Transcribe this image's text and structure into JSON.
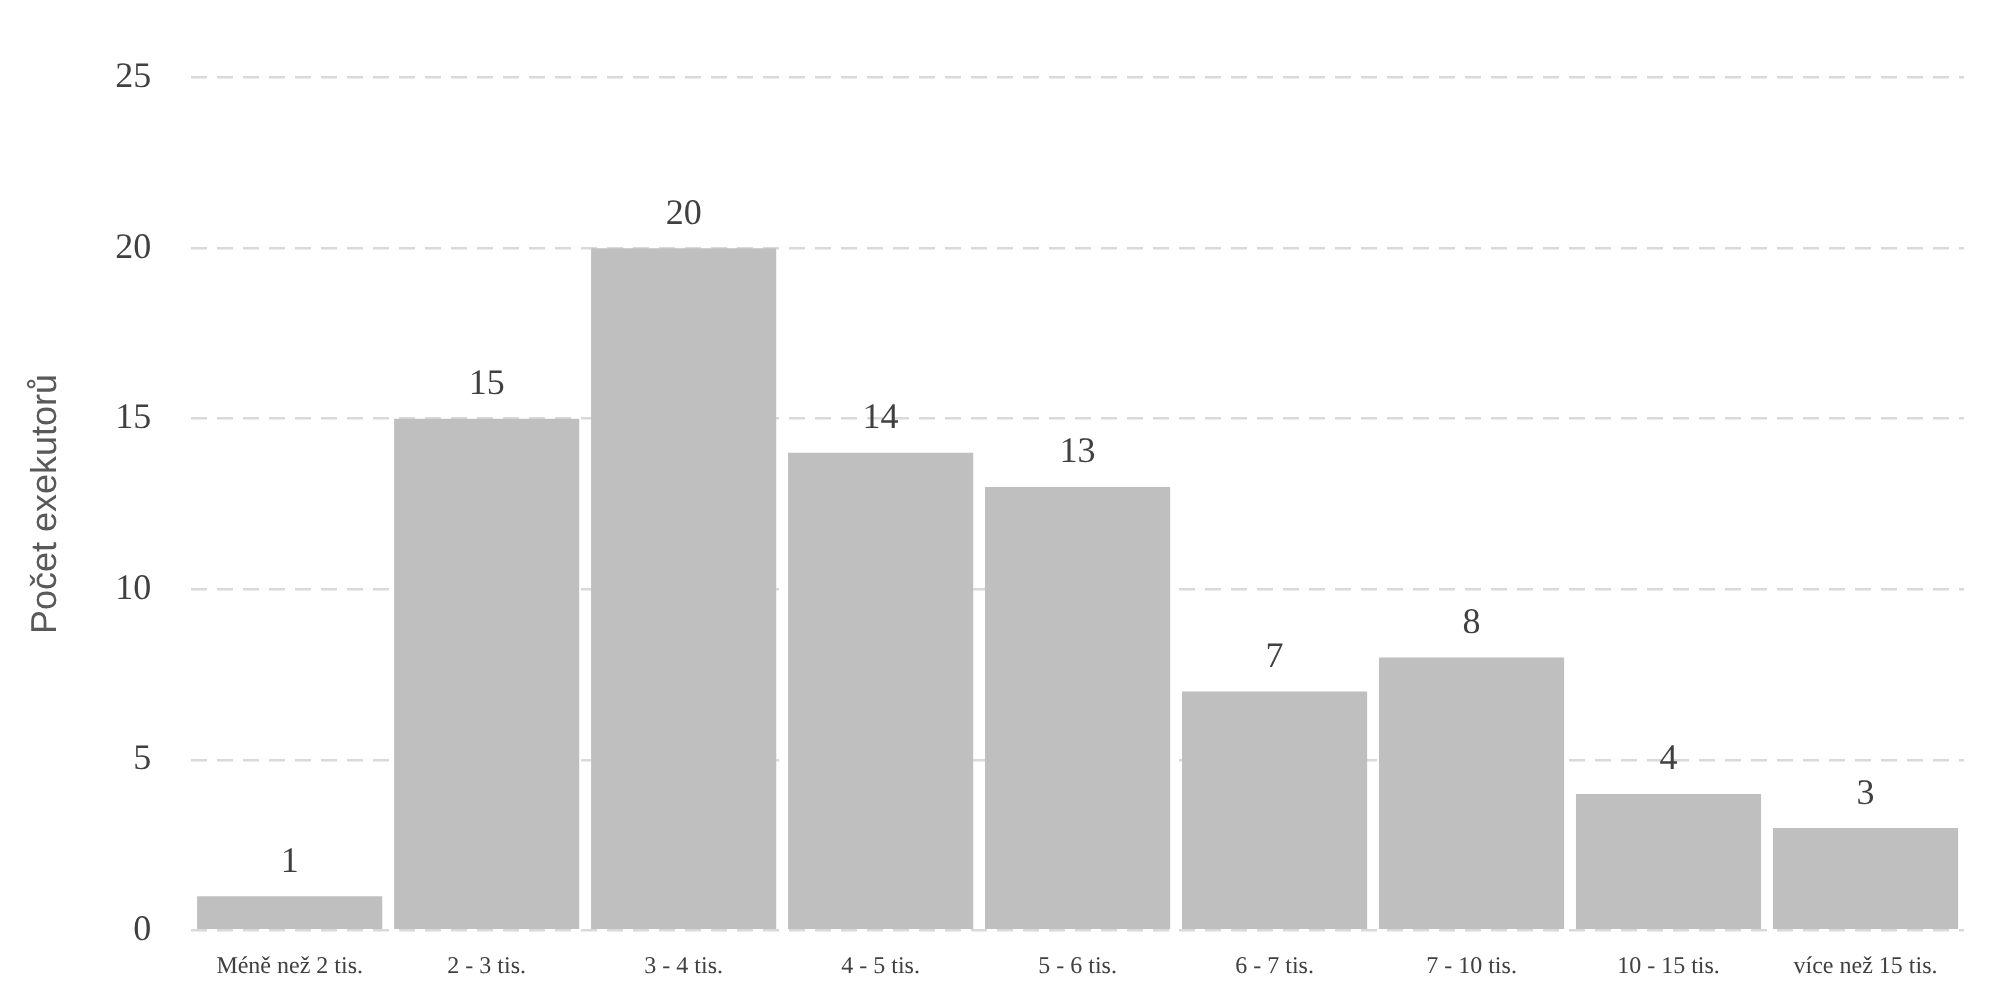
{
  "chart_data": {
    "type": "bar",
    "ylabel": "Počet exekutorů",
    "categories": [
      "Méně než 2 tis.",
      "2 - 3 tis.",
      "3 - 4 tis.",
      "4 - 5 tis.",
      "5 - 6 tis.",
      "6 - 7 tis.",
      "7 - 10 tis.",
      "10 - 15 tis.",
      "více než 15 tis."
    ],
    "values": [
      1,
      15,
      20,
      14,
      13,
      7,
      8,
      4,
      3
    ],
    "color": "#bfbfbf",
    "ylim": [
      0,
      25
    ],
    "yticks": [
      0,
      5,
      10,
      15,
      20,
      25
    ],
    "grid": "y",
    "line_style": "dashed",
    "legend": false,
    "data_labels": true
  }
}
